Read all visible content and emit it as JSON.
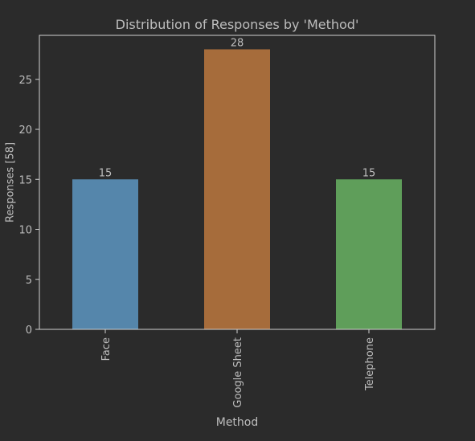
{
  "chart_data": {
    "type": "bar",
    "title": "Distribution of Responses by 'Method'",
    "xlabel": "Method",
    "ylabel": "Responses [58]",
    "categories": [
      "Face",
      "Google Sheet",
      "Telephone"
    ],
    "values": [
      15,
      28,
      15
    ],
    "data_labels": [
      "15",
      "28",
      "15"
    ],
    "ylim": [
      0,
      29.4
    ],
    "yticks": [
      0,
      5,
      10,
      15,
      20,
      25
    ],
    "grid": false,
    "legend": "none",
    "bar_colors": [
      "#5586ab",
      "#a66c3b",
      "#5f9e5a"
    ]
  },
  "theme": {
    "background": "#2b2b2b",
    "axis_color": "#d0d0d0",
    "text_color": "#bdbdbd"
  }
}
